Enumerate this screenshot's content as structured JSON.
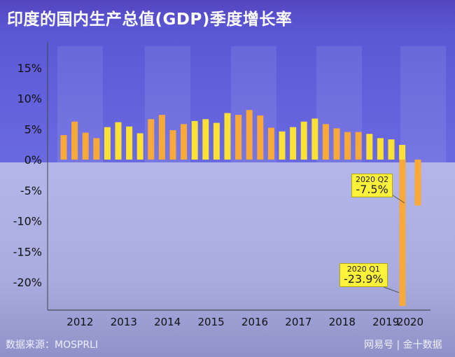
{
  "title": "印度的国内生产总值(GDP)季度增长率",
  "source": "数据来源：MOSPRLI",
  "watermark": "网易号 | 金十数据",
  "colors": {
    "orange": "#f9a83a",
    "yellow": "#fbe036",
    "background": "#5b5ad8",
    "floor": "#a9acdf"
  },
  "chart_data": {
    "type": "bar",
    "title": "印度的国内生产总值(GDP)季度增长率",
    "xlabel": "",
    "ylabel": "",
    "ylim": [
      -25,
      17
    ],
    "yticks": [
      "15%",
      "10%",
      "5%",
      "0%",
      "-5%",
      "-10%",
      "-15%",
      "-20%"
    ],
    "ytick_values": [
      15,
      10,
      5,
      0,
      -5,
      -10,
      -15,
      -20
    ],
    "years": [
      "2012",
      "2013",
      "2014",
      "2015",
      "2016",
      "2017",
      "2018",
      "2019",
      "2020"
    ],
    "series": [
      {
        "values": [
          4.0,
          6.2,
          4.4,
          3.5,
          5.3,
          6.1,
          5.4,
          4.3,
          6.6,
          7.3,
          4.8,
          5.8,
          6.3,
          6.6,
          6.0,
          7.6,
          7.3,
          8.1,
          7.2,
          5.2,
          4.6,
          5.3,
          6.2,
          6.7,
          5.8,
          5.1,
          4.5,
          4.5,
          4.2,
          3.5,
          3.3,
          2.4,
          -23.9,
          -7.5
        ]
      }
    ],
    "annotations": [
      {
        "quarter": "2020 Q1",
        "label": "-23.9%",
        "value": -23.9
      },
      {
        "quarter": "2020 Q2",
        "label": "-7.5%",
        "value": -7.5
      }
    ],
    "grid": false,
    "legend": "none"
  }
}
